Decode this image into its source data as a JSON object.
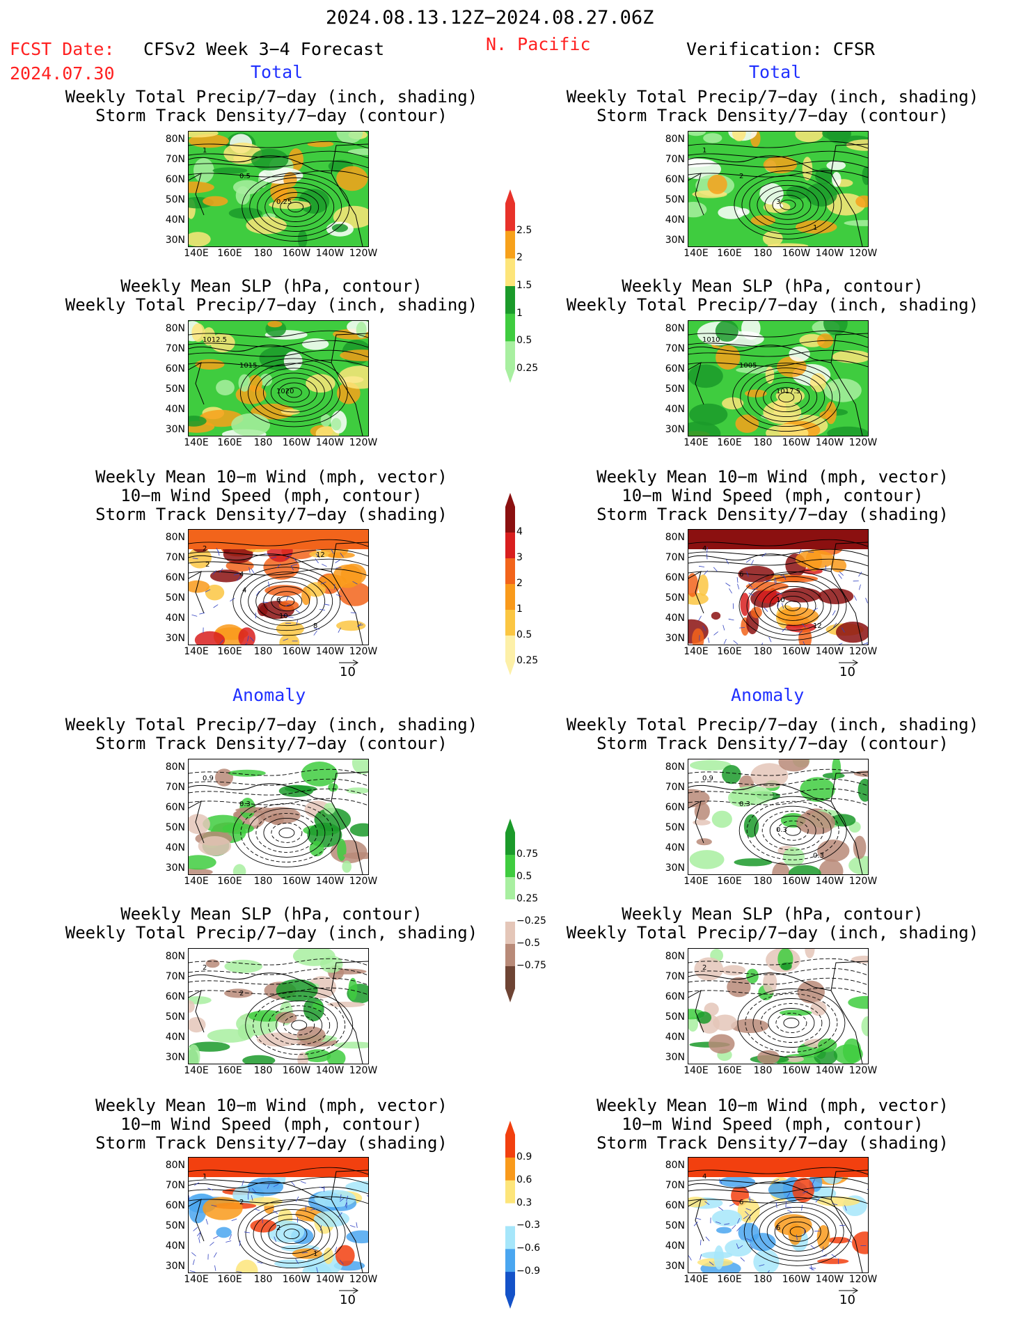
{
  "header": {
    "date_range": "2024.08.13.12Z−2024.08.27.06Z",
    "fcst_label": "FCST Date:",
    "fcst_date": "2024.07.30",
    "model": "CFSv2 Week 3−4 Forecast",
    "region": "N. Pacific",
    "verification": "Verification: CFSR"
  },
  "sections": {
    "total": "Total",
    "anomaly": "Anomaly"
  },
  "panel_titles": {
    "precip_track": "Weekly Total Precip/7−day (inch, shading)\nStorm Track Density/7−day (contour)",
    "slp_precip": "Weekly Mean SLP (hPa, contour)\nWeekly Total Precip/7−day (inch, shading)",
    "wind_track": "Weekly Mean 10−m Wind (mph, vector)\n10−m Wind Speed (mph, contour)\nStorm Track Density/7−day (shading)"
  },
  "axes": {
    "lat_labels": [
      "80N",
      "70N",
      "60N",
      "50N",
      "40N",
      "30N"
    ],
    "lon_labels": [
      "140E",
      "160E",
      "180",
      "160W",
      "140W",
      "120W"
    ]
  },
  "vector_ref": "10",
  "colorbars": {
    "precip_total": {
      "labels": [
        "2.5",
        "2",
        "1.5",
        "1",
        "0.5",
        "0.25"
      ],
      "colors": [
        "#e8322a",
        "#f7a11b",
        "#fde57a",
        "#1b9a2a",
        "#3fcc3f",
        "#a8efa0"
      ]
    },
    "track_total": {
      "labels": [
        "4",
        "3",
        "2",
        "1",
        "0.5",
        "0.25"
      ],
      "colors": [
        "#8b1010",
        "#d81e1e",
        "#f2641b",
        "#f99a1b",
        "#fbc642",
        "#fdf0a8"
      ]
    },
    "precip_anom": {
      "labels": [
        "0.75",
        "0.5",
        "0.25",
        "−0.25",
        "−0.5",
        "−0.75"
      ],
      "colors": [
        "#1b9a2a",
        "#3fcc3f",
        "#a8efa0",
        "#ffffff",
        "#e4c6b8",
        "#b88a78",
        "#6e4434"
      ]
    },
    "track_anom": {
      "labels": [
        "0.9",
        "0.6",
        "0.3",
        "−0.3",
        "−0.6",
        "−0.9"
      ],
      "colors": [
        "#f2400f",
        "#f99a1b",
        "#fde57a",
        "#ffffff",
        "#a6e6fa",
        "#4aa6f0",
        "#1452c8"
      ]
    }
  },
  "contour_labels": {
    "p1_left": [
      "1",
      "0.5",
      "0.25"
    ],
    "p1_right": [
      "1",
      "2",
      "3",
      "1"
    ],
    "p2_left": [
      "1012.5",
      "1015",
      "1020"
    ],
    "p2_right": [
      "1010",
      "1005",
      "1017.5"
    ],
    "p3_left": [
      "2",
      "4",
      "6",
      "8",
      "2",
      "4",
      "10",
      "12"
    ],
    "p3_right": [
      "4",
      "6",
      "10",
      "12"
    ],
    "p4_left": [
      "0.9",
      "0.3"
    ],
    "p4_right": [
      "0.9",
      "0.3",
      "0.3",
      "0.3"
    ],
    "p5_left": [
      "2",
      "2"
    ],
    "p5_right": [
      "2"
    ],
    "p6_left": [
      "1",
      "2",
      "2",
      "1"
    ],
    "p6_right": [
      "4",
      "6",
      "6"
    ]
  }
}
